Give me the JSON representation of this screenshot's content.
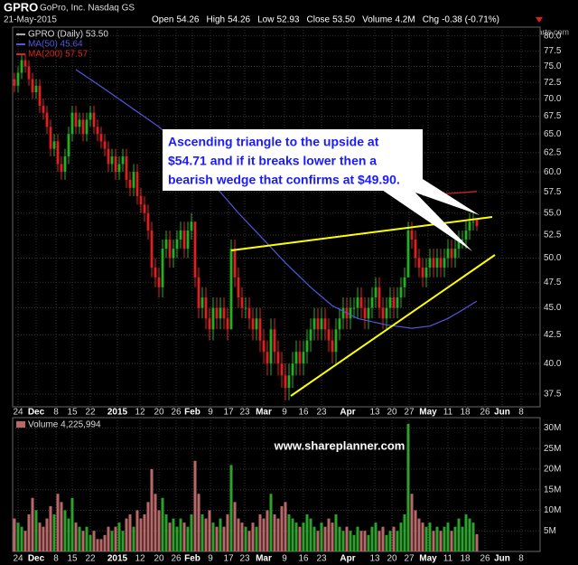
{
  "header": {
    "symbol": "GPRO",
    "name": "GoPro, Inc.  Nasdaq GS",
    "date": "21-May-2015",
    "watermark": "©StockCharts.com",
    "quote": [
      {
        "label": "Open",
        "value": "54.26"
      },
      {
        "label": "High",
        "value": "54.26"
      },
      {
        "label": "Low",
        "value": "52.93"
      },
      {
        "label": "Close",
        "value": "53.50"
      },
      {
        "label": "Volume",
        "value": "4.2M"
      },
      {
        "label": "Chg",
        "value": "-0.38 (-0.71%)"
      }
    ]
  },
  "chart_data": {
    "type": "candlestick",
    "log_scale": true,
    "grid": true,
    "candle_name": "GPRO (Daily) 53.50",
    "up_color": "#22b022",
    "down_color": "#e02020",
    "annotation": [
      "Ascending triangle to the upside at",
      "$54.71 and if it breaks lower then a",
      "bearish wedge that confirms at $49.90."
    ],
    "site": "www.shareplanner.com",
    "xlim": [
      -0.5,
      145.5
    ],
    "xticks": [
      {
        "value": 1,
        "label": "24"
      },
      {
        "value": 6,
        "label": "Dec"
      },
      {
        "value": 11.5,
        "label": "8"
      },
      {
        "value": 16,
        "label": "15"
      },
      {
        "value": 21,
        "label": "22"
      },
      {
        "value": 28.5,
        "label": "2015"
      },
      {
        "value": 34.75,
        "label": "12"
      },
      {
        "value": 40,
        "label": "20"
      },
      {
        "value": 44.75,
        "label": "26"
      },
      {
        "value": 49.25,
        "label": "Feb"
      },
      {
        "value": 54.25,
        "label": "9"
      },
      {
        "value": 59.25,
        "label": "17"
      },
      {
        "value": 63.75,
        "label": "23"
      },
      {
        "value": 69,
        "label": "Mar"
      },
      {
        "value": 74.75,
        "label": "9"
      },
      {
        "value": 80,
        "label": "16"
      },
      {
        "value": 85,
        "label": "23"
      },
      {
        "value": 92.25,
        "label": "Apr"
      },
      {
        "value": 99.75,
        "label": "13"
      },
      {
        "value": 104.5,
        "label": "20"
      },
      {
        "value": 109.25,
        "label": "27"
      },
      {
        "value": 114.5,
        "label": "May"
      },
      {
        "value": 120,
        "label": "11"
      },
      {
        "value": 124.75,
        "label": "18"
      },
      {
        "value": 130.25,
        "label": "26"
      },
      {
        "value": 135,
        "label": "Jun"
      },
      {
        "value": 140.25,
        "label": "8"
      }
    ],
    "ylim": [
      36.5,
      81.5
    ],
    "yticks": [
      37.5,
      {
        "value": 40,
        "label": "40.0"
      },
      42.5,
      {
        "value": 45,
        "label": "45.0"
      },
      47.5,
      {
        "value": 50,
        "label": "50.0"
      },
      52.5,
      {
        "value": 55,
        "label": "55.0"
      },
      57.5,
      {
        "value": 60,
        "label": "60.0"
      },
      62.5,
      {
        "value": 65,
        "label": "65.0"
      },
      67.5,
      {
        "value": 70,
        "label": "70.0"
      },
      72.5,
      {
        "value": 75,
        "label": "75.0"
      },
      77.5,
      {
        "value": 80,
        "label": "80.0"
      }
    ],
    "x": [
      0,
      1,
      2,
      3,
      4,
      5,
      6,
      7,
      8,
      9,
      10,
      11,
      12,
      13,
      14,
      15,
      16,
      17,
      18,
      19,
      20,
      21,
      22,
      23,
      24,
      25,
      26,
      27,
      28,
      29,
      30,
      31,
      32,
      33,
      34,
      35,
      36,
      37,
      38,
      39,
      40,
      41,
      42,
      43,
      44,
      45,
      46,
      47,
      48,
      49,
      50,
      51,
      52,
      53,
      54,
      55,
      56,
      57,
      58,
      59,
      60,
      61,
      62,
      63,
      64,
      65,
      66,
      67,
      68,
      69,
      70,
      71,
      72,
      73,
      74,
      75,
      76,
      77,
      78,
      79,
      80,
      81,
      82,
      83,
      84,
      85,
      86,
      87,
      88,
      89,
      90,
      91,
      92,
      93,
      94,
      95,
      96,
      97,
      98,
      99,
      100,
      101,
      102,
      103,
      104,
      105,
      106,
      107,
      108,
      109,
      110,
      111,
      112,
      113,
      114,
      115,
      116,
      117,
      118,
      119,
      120,
      121,
      122,
      123,
      124,
      125,
      126,
      127,
      128
    ],
    "ohlc": [
      [
        73,
        74,
        71,
        72
      ],
      [
        72,
        75,
        71,
        74
      ],
      [
        74,
        77,
        73,
        76
      ],
      [
        76,
        77,
        74,
        75
      ],
      [
        75,
        76,
        72,
        73
      ],
      [
        73,
        74,
        70,
        71
      ],
      [
        71,
        73,
        70,
        72
      ],
      [
        72,
        73,
        68,
        69
      ],
      [
        69,
        70,
        67,
        68
      ],
      [
        68,
        69,
        65,
        66
      ],
      [
        66,
        67,
        62,
        63
      ],
      [
        63,
        65,
        62,
        64
      ],
      [
        64,
        65,
        60,
        61
      ],
      [
        61,
        62,
        59,
        60
      ],
      [
        60,
        63,
        59,
        62
      ],
      [
        62,
        66,
        61,
        65
      ],
      [
        65,
        69,
        64,
        68
      ],
      [
        68,
        69,
        65,
        66
      ],
      [
        66,
        68,
        65,
        67
      ],
      [
        67,
        68,
        64,
        65
      ],
      [
        65,
        68,
        64,
        67
      ],
      [
        67,
        69,
        66,
        68
      ],
      [
        68,
        69,
        65,
        66
      ],
      [
        66,
        67,
        64,
        65
      ],
      [
        65,
        66,
        63,
        64
      ],
      [
        64,
        65,
        62,
        63
      ],
      [
        63,
        64,
        60,
        61
      ],
      [
        61,
        63,
        60,
        62
      ],
      [
        62,
        63,
        59,
        60
      ],
      [
        60,
        62,
        59,
        61
      ],
      [
        61,
        63,
        60,
        62
      ],
      [
        62,
        63,
        58,
        59
      ],
      [
        59,
        60,
        57,
        58
      ],
      [
        58,
        61,
        57,
        60
      ],
      [
        60,
        61,
        56,
        57
      ],
      [
        57,
        58,
        55,
        56
      ],
      [
        56,
        57,
        54,
        55
      ],
      [
        55,
        56,
        52,
        53
      ],
      [
        53,
        54,
        48,
        49
      ],
      [
        49,
        50,
        47,
        48
      ],
      [
        48,
        49,
        46,
        47
      ],
      [
        47,
        52,
        46,
        51
      ],
      [
        51,
        53,
        50,
        52
      ],
      [
        52,
        53,
        49,
        50
      ],
      [
        50,
        52,
        49,
        51
      ],
      [
        51,
        53,
        50,
        52
      ],
      [
        52,
        54,
        51,
        53
      ],
      [
        53,
        54,
        50,
        51
      ],
      [
        51,
        54,
        50,
        53
      ],
      [
        53,
        55,
        52,
        54
      ],
      [
        54,
        54,
        47,
        48
      ],
      [
        48,
        49,
        44,
        45
      ],
      [
        45,
        47,
        44,
        46
      ],
      [
        46,
        47,
        43,
        44
      ],
      [
        44,
        45,
        42,
        43
      ],
      [
        43,
        46,
        42,
        45
      ],
      [
        45,
        46,
        43,
        44
      ],
      [
        44,
        46,
        43,
        45
      ],
      [
        45,
        46,
        43,
        44
      ],
      [
        44,
        45,
        42,
        43
      ],
      [
        43,
        52,
        43,
        51
      ],
      [
        51,
        52,
        47,
        48
      ],
      [
        48,
        49,
        45,
        46
      ],
      [
        46,
        47,
        44,
        45
      ],
      [
        45,
        46,
        44,
        45
      ],
      [
        45,
        46,
        43,
        44
      ],
      [
        44,
        45,
        42,
        43
      ],
      [
        43,
        45,
        42,
        44
      ],
      [
        44,
        45,
        41,
        42
      ],
      [
        42,
        43,
        40,
        41
      ],
      [
        41,
        42,
        39,
        40
      ],
      [
        40,
        44,
        39,
        43
      ],
      [
        43,
        44,
        40,
        41
      ],
      [
        41,
        42,
        39,
        40
      ],
      [
        40,
        41,
        38,
        39
      ],
      [
        39,
        40,
        37,
        38
      ],
      [
        38,
        40,
        37,
        39
      ],
      [
        39,
        41,
        38,
        40
      ],
      [
        40,
        42,
        39,
        41
      ],
      [
        41,
        42,
        39,
        40
      ],
      [
        40,
        42,
        39,
        41
      ],
      [
        41,
        43,
        40,
        42
      ],
      [
        42,
        44,
        41,
        43
      ],
      [
        43,
        45,
        42,
        44
      ],
      [
        44,
        45,
        42,
        43
      ],
      [
        43,
        45,
        42,
        44
      ],
      [
        44,
        45,
        42,
        43
      ],
      [
        43,
        44,
        41,
        42
      ],
      [
        42,
        43,
        40,
        41
      ],
      [
        41,
        44,
        40,
        43
      ],
      [
        43,
        45,
        42,
        44
      ],
      [
        44,
        46,
        43,
        45
      ],
      [
        45,
        46,
        43,
        44
      ],
      [
        44,
        46,
        43,
        45
      ],
      [
        45,
        46,
        44,
        45
      ],
      [
        45,
        47,
        44,
        46
      ],
      [
        46,
        47,
        44,
        45
      ],
      [
        45,
        46,
        43,
        44
      ],
      [
        44,
        46,
        43,
        45
      ],
      [
        45,
        47,
        44,
        46
      ],
      [
        46,
        48,
        45,
        47
      ],
      [
        47,
        48,
        44,
        45
      ],
      [
        45,
        46,
        43,
        44
      ],
      [
        44,
        46,
        43,
        45
      ],
      [
        45,
        47,
        44,
        46
      ],
      [
        46,
        47,
        44,
        45
      ],
      [
        45,
        47,
        44,
        46
      ],
      [
        46,
        48,
        45,
        47
      ],
      [
        47,
        49,
        46,
        48
      ],
      [
        48,
        54,
        48,
        53
      ],
      [
        53,
        54,
        51,
        52
      ],
      [
        52,
        53,
        49,
        50
      ],
      [
        50,
        51,
        48,
        49
      ],
      [
        49,
        50,
        47,
        48
      ],
      [
        48,
        50,
        47,
        49
      ],
      [
        49,
        51,
        48,
        50
      ],
      [
        50,
        51,
        48,
        49
      ],
      [
        49,
        51,
        48,
        50
      ],
      [
        50,
        51,
        48,
        49
      ],
      [
        49,
        51,
        48,
        50
      ],
      [
        50,
        52,
        49,
        51
      ],
      [
        51,
        52,
        49,
        50
      ],
      [
        50,
        52,
        49,
        51
      ],
      [
        51,
        53,
        50,
        52
      ],
      [
        52,
        53,
        51,
        52
      ],
      [
        52,
        54,
        51,
        53
      ],
      [
        53,
        55,
        52,
        54
      ],
      [
        54,
        55,
        53,
        54
      ],
      [
        54.26,
        54.26,
        52.93,
        53.5
      ]
    ],
    "series": [
      {
        "name": "MA(50) 45.64",
        "color": "#5555dd",
        "x": [
          17,
          25,
          33,
          40,
          48,
          55,
          62,
          68,
          75,
          82,
          88,
          95,
          103,
          110,
          115,
          120,
          124,
          128
        ],
        "values": [
          74.5,
          71.5,
          68.5,
          66,
          62.5,
          58.5,
          55,
          52.4,
          49.5,
          47,
          45.2,
          44,
          43.4,
          43.1,
          43.3,
          44,
          44.8,
          45.64
        ]
      },
      {
        "name": "MA(200) 57.57",
        "color": "#dd2222",
        "x": [
          113,
          120,
          128
        ],
        "values": [
          57.1,
          57.3,
          57.57
        ]
      }
    ],
    "volume": {
      "name": "Volume 4,225,994",
      "up_color": "#2ea02e",
      "down_color": "#b86868",
      "ylim": [
        0,
        32.5
      ],
      "yticks": [
        {
          "value": 5,
          "label": "5M"
        },
        {
          "value": 10,
          "label": "10M"
        },
        {
          "value": 15,
          "label": "15M"
        },
        {
          "value": 20,
          "label": "20M"
        },
        {
          "value": 25,
          "label": "25M"
        },
        {
          "value": 30,
          "label": "30M"
        }
      ],
      "values": [
        8,
        7,
        6,
        5,
        9,
        13,
        10,
        7,
        6,
        8,
        11,
        9,
        14,
        12,
        10,
        8,
        13,
        7,
        6,
        5,
        6,
        4,
        5,
        3,
        3,
        4,
        6,
        5,
        6,
        7,
        5,
        8,
        9,
        6,
        10,
        8,
        9,
        12,
        20,
        14,
        10,
        13,
        9,
        7,
        8,
        6,
        8,
        7,
        6,
        9,
        22,
        14,
        9,
        8,
        10,
        7,
        6,
        8,
        6,
        9,
        21,
        12,
        8,
        7,
        6,
        5,
        7,
        6,
        9,
        8,
        10,
        14,
        9,
        8,
        11,
        12,
        9,
        8,
        7,
        6,
        7,
        9,
        8,
        6,
        5,
        7,
        6,
        8,
        7,
        9,
        6,
        5,
        6,
        5,
        4,
        6,
        5,
        5,
        4,
        6,
        7,
        5,
        6,
        4,
        5,
        6,
        5,
        7,
        9,
        31,
        14,
        10,
        8,
        7,
        6,
        7,
        5,
        6,
        5,
        6,
        7,
        5,
        6,
        8,
        6,
        9,
        8,
        7,
        4.2
      ]
    }
  }
}
